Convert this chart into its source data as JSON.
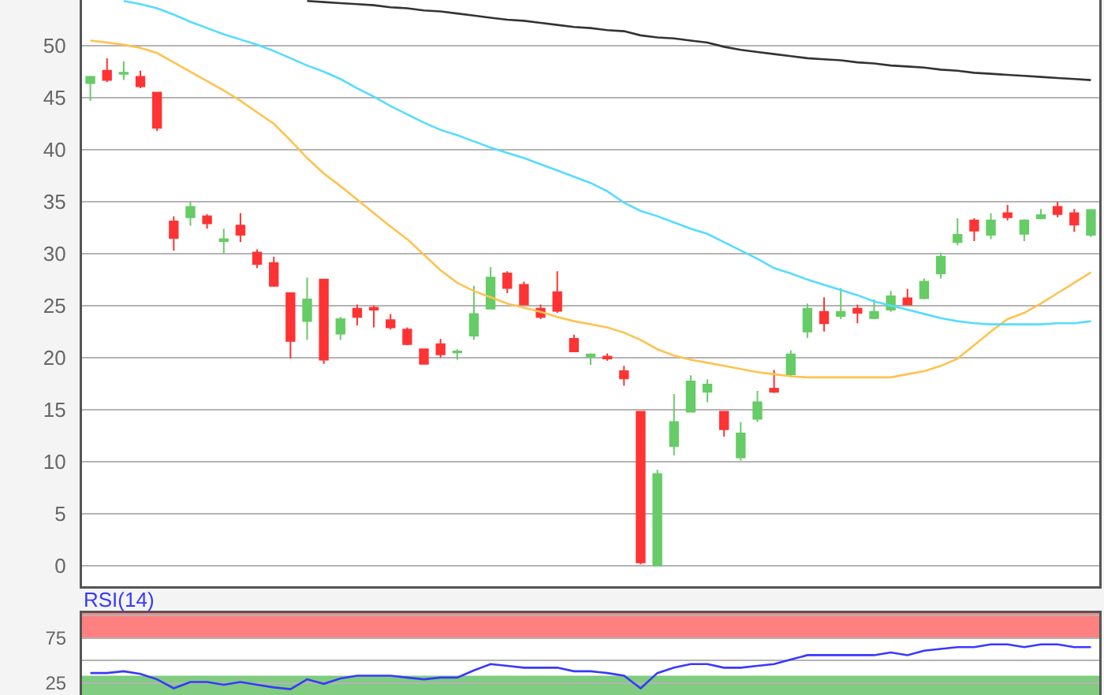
{
  "chart_data": [
    {
      "type": "candlestick",
      "categories": [
        null,
        null,
        null,
        null,
        null,
        null,
        null,
        null,
        null,
        null,
        null,
        null,
        null,
        null,
        null,
        null,
        null,
        null,
        null,
        null,
        null,
        null,
        null,
        null,
        null,
        null,
        null,
        null,
        null,
        null,
        null,
        null,
        null,
        null,
        null,
        null,
        null,
        null,
        null,
        null,
        null,
        null,
        null,
        null,
        null,
        null,
        null,
        null,
        null,
        null,
        null,
        null,
        null,
        null,
        null,
        null,
        null,
        null,
        null,
        null,
        null
      ],
      "ohlc": [
        [
          46.4,
          47.1,
          44.7,
          47.0
        ],
        [
          47.6,
          48.8,
          46.5,
          46.7
        ],
        [
          47.3,
          48.5,
          46.7,
          47.4
        ],
        [
          47.0,
          47.6,
          45.9,
          46.1
        ],
        [
          45.5,
          45.5,
          41.8,
          42.1
        ],
        [
          33.1,
          33.6,
          30.3,
          31.5
        ],
        [
          33.5,
          35.0,
          32.7,
          34.5
        ],
        [
          33.6,
          33.8,
          32.4,
          32.9
        ],
        [
          31.2,
          32.4,
          30.0,
          31.4
        ],
        [
          32.7,
          33.9,
          31.1,
          31.8
        ],
        [
          30.1,
          30.4,
          28.6,
          29.0
        ],
        [
          29.1,
          29.7,
          26.8,
          26.9
        ],
        [
          26.2,
          26.2,
          19.9,
          21.6
        ],
        [
          23.5,
          27.7,
          21.7,
          25.6
        ],
        [
          27.5,
          27.5,
          19.4,
          19.8
        ],
        [
          22.3,
          23.9,
          21.7,
          23.7
        ],
        [
          24.7,
          25.1,
          23.1,
          23.9
        ],
        [
          24.8,
          25.0,
          22.9,
          24.6
        ],
        [
          23.6,
          24.2,
          22.7,
          22.9
        ],
        [
          22.7,
          22.9,
          21.2,
          21.3
        ],
        [
          20.8,
          20.8,
          19.4,
          19.4
        ],
        [
          21.3,
          21.8,
          20.0,
          20.3
        ],
        [
          20.5,
          20.8,
          19.8,
          20.6
        ],
        [
          22.1,
          26.9,
          21.7,
          24.2
        ],
        [
          24.7,
          28.7,
          24.7,
          27.7
        ],
        [
          28.1,
          28.3,
          26.2,
          26.7
        ],
        [
          27.0,
          27.3,
          25.1,
          25.1
        ],
        [
          24.7,
          25.1,
          23.7,
          23.9
        ],
        [
          26.3,
          28.3,
          24.3,
          24.5
        ],
        [
          21.8,
          22.2,
          20.6,
          20.6
        ],
        [
          20.1,
          20.4,
          19.3,
          20.3
        ],
        [
          20.1,
          20.4,
          19.7,
          19.9
        ],
        [
          18.7,
          19.2,
          17.3,
          18.0
        ],
        [
          14.8,
          14.8,
          0.1,
          0.3
        ],
        [
          0.0,
          9.2,
          0.0,
          8.8
        ],
        [
          11.5,
          16.5,
          10.6,
          13.8
        ],
        [
          14.8,
          18.3,
          14.8,
          17.7
        ],
        [
          16.7,
          17.9,
          15.7,
          17.4
        ],
        [
          14.8,
          14.8,
          12.4,
          13.1
        ],
        [
          10.4,
          13.8,
          10.1,
          12.7
        ],
        [
          14.1,
          16.8,
          13.8,
          15.7
        ],
        [
          17.0,
          18.8,
          16.6,
          16.7
        ],
        [
          18.4,
          20.7,
          18.1,
          20.3
        ],
        [
          22.5,
          25.2,
          21.9,
          24.7
        ],
        [
          24.4,
          25.8,
          22.5,
          23.3
        ],
        [
          24.0,
          26.7,
          23.7,
          24.4
        ],
        [
          24.7,
          25.1,
          23.3,
          24.3
        ],
        [
          23.8,
          25.6,
          23.7,
          24.4
        ],
        [
          24.6,
          26.4,
          24.4,
          25.9
        ],
        [
          25.7,
          26.6,
          25.1,
          25.1
        ],
        [
          25.7,
          27.6,
          25.6,
          27.3
        ],
        [
          28.1,
          30.1,
          27.6,
          29.7
        ],
        [
          31.1,
          33.4,
          30.8,
          31.8
        ],
        [
          33.2,
          33.4,
          31.2,
          32.2
        ],
        [
          31.8,
          33.9,
          31.4,
          33.2
        ],
        [
          33.9,
          34.7,
          33.2,
          33.5
        ],
        [
          31.9,
          33.3,
          31.2,
          33.2
        ],
        [
          33.4,
          34.3,
          33.3,
          33.7
        ],
        [
          34.5,
          35.0,
          33.5,
          33.8
        ],
        [
          33.9,
          34.3,
          32.1,
          32.8
        ],
        [
          31.8,
          34.3,
          31.6,
          34.2
        ]
      ],
      "colors": [
        "#66cc66",
        "#ff3333",
        "#66cc66",
        "#ff3333",
        "#ff3333",
        "#ff3333",
        "#66cc66",
        "#ff3333",
        "#66cc66",
        "#ff3333",
        "#ff3333",
        "#ff3333",
        "#ff3333",
        "#66cc66",
        "#ff3333",
        "#66cc66",
        "#ff3333",
        "#ff3333",
        "#ff3333",
        "#ff3333",
        "#ff3333",
        "#ff3333",
        "#66cc66",
        "#66cc66",
        "#66cc66",
        "#ff3333",
        "#ff3333",
        "#ff3333",
        "#ff3333",
        "#ff3333",
        "#66cc66",
        "#ff3333",
        "#ff3333",
        "#ff3333",
        "#66cc66",
        "#66cc66",
        "#66cc66",
        "#66cc66",
        "#ff3333",
        "#66cc66",
        "#66cc66",
        "#ff3333",
        "#66cc66",
        "#66cc66",
        "#ff3333",
        "#66cc66",
        "#ff3333",
        "#66cc66",
        "#66cc66",
        "#ff3333",
        "#66cc66",
        "#66cc66",
        "#66cc66",
        "#ff3333",
        "#66cc66",
        "#ff3333",
        "#66cc66",
        "#66cc66",
        "#ff3333",
        "#ff3333",
        "#66cc66"
      ],
      "series": [
        {
          "type": "line",
          "color": "#ffc24f",
          "values": [
            50.5,
            50.3,
            50.1,
            49.8,
            49.3,
            48.4,
            47.5,
            46.6,
            45.7,
            44.7,
            43.6,
            42.5,
            40.9,
            39.2,
            37.7,
            36.5,
            35.2,
            33.9,
            32.6,
            31.4,
            29.9,
            28.4,
            27.2,
            26.4,
            25.8,
            25.2,
            24.8,
            24.4,
            23.9,
            23.5,
            23.2,
            22.9,
            22.4,
            21.7,
            20.8,
            20.2,
            19.8,
            19.5,
            19.2,
            18.9,
            18.6,
            18.4,
            18.2,
            18.1,
            18.1,
            18.1,
            18.1,
            18.1,
            18.1,
            18.4,
            18.7,
            19.2,
            19.9,
            21.2,
            22.5,
            23.7,
            24.3,
            25.2,
            26.2,
            27.2,
            28.2
          ]
        },
        {
          "type": "line",
          "color": "#55dcff",
          "values": [
            null,
            null,
            54.3,
            54.0,
            53.6,
            53.0,
            52.3,
            51.7,
            51.1,
            50.6,
            50.1,
            49.5,
            48.8,
            48.1,
            47.5,
            46.8,
            45.9,
            45.1,
            44.2,
            43.4,
            42.6,
            41.9,
            41.4,
            40.8,
            40.2,
            39.7,
            39.2,
            38.6,
            38.0,
            37.4,
            36.8,
            36.0,
            34.9,
            34.1,
            33.6,
            33.0,
            32.4,
            31.9,
            31.1,
            30.3,
            29.5,
            28.6,
            28.1,
            27.5,
            27.0,
            26.5,
            26.0,
            25.4,
            25.0,
            24.6,
            24.2,
            23.8,
            23.5,
            23.3,
            23.2,
            23.2,
            23.2,
            23.2,
            23.3,
            23.3,
            23.5
          ]
        },
        {
          "type": "line",
          "color": "#333333",
          "values": [
            null,
            null,
            null,
            null,
            null,
            null,
            null,
            null,
            null,
            null,
            null,
            null,
            null,
            54.3,
            54.2,
            54.1,
            54.0,
            53.9,
            53.7,
            53.6,
            53.4,
            53.3,
            53.1,
            52.9,
            52.7,
            52.5,
            52.4,
            52.2,
            52.0,
            51.8,
            51.7,
            51.5,
            51.4,
            51.0,
            50.8,
            50.7,
            50.5,
            50.3,
            49.9,
            49.6,
            49.4,
            49.2,
            49.0,
            48.8,
            48.7,
            48.6,
            48.4,
            48.3,
            48.1,
            48.0,
            47.9,
            47.7,
            47.6,
            47.4,
            47.3,
            47.2,
            47.1,
            47.0,
            46.9,
            46.8,
            46.7
          ]
        }
      ],
      "ylim": [
        -2,
        54.4
      ],
      "yticks": [
        0,
        5,
        10,
        15,
        20,
        25,
        30,
        35,
        40,
        45,
        50
      ],
      "grid": "y",
      "tick_labels": "y"
    },
    {
      "type": "line",
      "categories": [
        null,
        null,
        null,
        null,
        null,
        null,
        null,
        null,
        null,
        null,
        null,
        null,
        null,
        null,
        null,
        null,
        null,
        null,
        null,
        null,
        null,
        null,
        null,
        null,
        null,
        null,
        null,
        null,
        null,
        null,
        null,
        null,
        null,
        null,
        null,
        null,
        null,
        null,
        null,
        null,
        null,
        null,
        null,
        null,
        null,
        null,
        null,
        null,
        null,
        null,
        null,
        null,
        null,
        null,
        null,
        null,
        null,
        null,
        null,
        null,
        null
      ],
      "series": [
        {
          "name": "RSI(14)",
          "color": "#3838ff",
          "values": [
            36,
            36,
            38,
            35,
            29,
            19,
            26,
            26,
            23,
            26,
            23,
            20,
            18,
            29,
            24,
            30,
            33,
            33,
            33,
            31,
            29,
            31,
            31,
            39,
            46,
            44,
            42,
            42,
            42,
            38,
            38,
            36,
            33,
            19,
            36,
            42,
            46,
            46,
            42,
            42,
            44,
            46,
            51,
            56,
            56,
            56,
            56,
            56,
            59,
            56,
            61,
            63,
            65,
            65,
            68,
            68,
            65,
            68,
            68,
            65,
            65
          ]
        }
      ],
      "bands": [
        {
          "axis": "y",
          "from": 75,
          "to": 103,
          "color": "#ff8080"
        },
        {
          "axis": "y",
          "from": 11.5,
          "to": 33,
          "color": "#80cc80"
        }
      ],
      "ylim": [
        11.5,
        103
      ],
      "yticks": [
        25,
        {
          "value": 50,
          "label": null
        },
        75,
        {
          "value": 100,
          "label": null
        }
      ],
      "grid": "y",
      "tick_labels": "y"
    }
  ]
}
